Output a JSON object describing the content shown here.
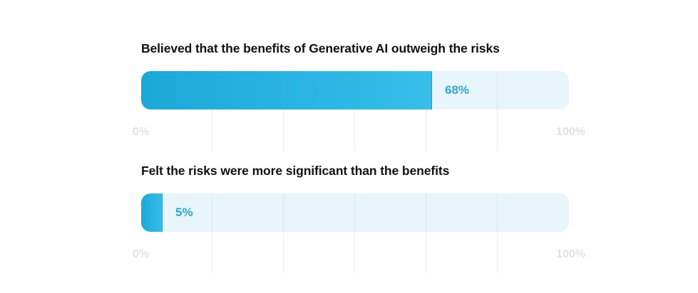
{
  "chart_data": [
    {
      "type": "bar",
      "orientation": "horizontal",
      "title": "Believed that the benefits of Generative AI outweigh the risks",
      "values": [
        68
      ],
      "value_label": "68%",
      "xlim": [
        0,
        100
      ],
      "tick_labels": [
        "0%",
        "100%"
      ],
      "grid": true,
      "colors": {
        "fill_start": "#1CA8D7",
        "fill_end": "#37BEEA",
        "track": "#EAF6FA",
        "value_label": "#2FA9CF",
        "tick_label": "#DFE2E5"
      }
    },
    {
      "type": "bar",
      "orientation": "horizontal",
      "title": "Felt the risks were more significant than the benefits",
      "values": [
        5
      ],
      "value_label": "5%",
      "xlim": [
        0,
        100
      ],
      "tick_labels": [
        "0%",
        "100%"
      ],
      "grid": true,
      "colors": {
        "fill_start": "#1CA8D7",
        "fill_end": "#37BEEA",
        "track": "#EAF6FA",
        "value_label": "#2FA9CF",
        "tick_label": "#DFE2E5"
      }
    }
  ]
}
